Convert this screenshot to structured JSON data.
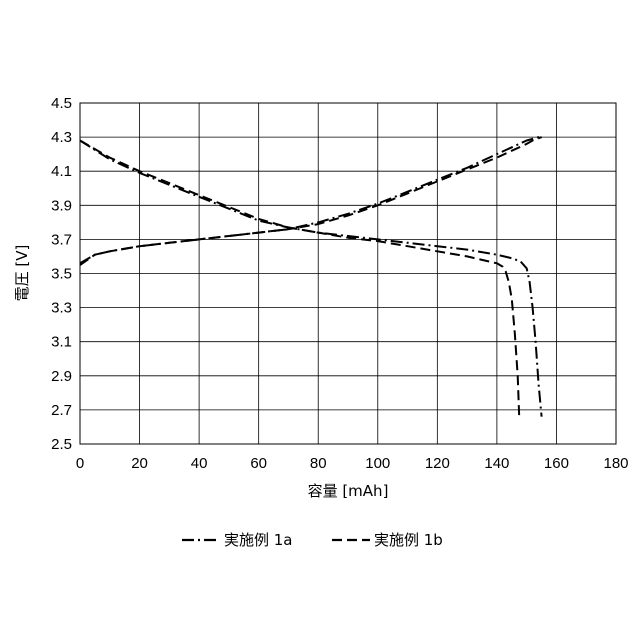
{
  "chart_data": {
    "type": "line",
    "xlabel": "容量 [mAh]",
    "ylabel": "電圧 [V]",
    "xlim": [
      0,
      180
    ],
    "ylim": [
      2.5,
      4.5
    ],
    "xticks": [
      "0",
      "20",
      "40",
      "60",
      "80",
      "100",
      "120",
      "140",
      "160",
      "180"
    ],
    "yticks": [
      "2.5",
      "2.7",
      "2.9",
      "3.1",
      "3.3",
      "3.5",
      "3.7",
      "3.9",
      "4.1",
      "4.3",
      "4.5"
    ],
    "grid": true,
    "legend_position": "bottom",
    "series": [
      {
        "name": "実施例 1a",
        "dash": "dash-dot",
        "color": "#000000",
        "curves": [
          {
            "x": [
              0,
              5,
              10,
              20,
              30,
              40,
              50,
              60,
              70,
              80,
              90,
              100,
              110,
              120,
              130,
              140,
              145,
              150,
              152,
              154,
              155
            ],
            "y": [
              3.56,
              3.61,
              3.63,
              3.66,
              3.68,
              3.7,
              3.72,
              3.74,
              3.76,
              3.8,
              3.85,
              3.91,
              3.98,
              4.05,
              4.12,
              4.2,
              4.24,
              4.28,
              4.29,
              4.3,
              4.3
            ]
          },
          {
            "x": [
              0,
              10,
              20,
              30,
              40,
              50,
              60,
              70,
              80,
              90,
              100,
              110,
              120,
              130,
              140,
              145,
              148,
              150,
              151,
              152,
              153,
              154,
              155
            ],
            "y": [
              4.28,
              4.17,
              4.09,
              4.02,
              3.95,
              3.88,
              3.81,
              3.77,
              3.74,
              3.72,
              3.7,
              3.68,
              3.66,
              3.64,
              3.61,
              3.59,
              3.57,
              3.53,
              3.45,
              3.3,
              3.1,
              2.85,
              2.66
            ]
          }
        ]
      },
      {
        "name": "実施例 1b",
        "dash": "dashed",
        "color": "#000000",
        "curves": [
          {
            "x": [
              0,
              5,
              10,
              20,
              30,
              40,
              50,
              60,
              70,
              80,
              90,
              100,
              110,
              120,
              130,
              140,
              145,
              150,
              152,
              155
            ],
            "y": [
              3.55,
              3.61,
              3.63,
              3.66,
              3.68,
              3.7,
              3.72,
              3.74,
              3.76,
              3.79,
              3.84,
              3.9,
              3.97,
              4.04,
              4.11,
              4.18,
              4.22,
              4.26,
              4.28,
              4.3
            ]
          },
          {
            "x": [
              0,
              10,
              20,
              30,
              40,
              50,
              60,
              70,
              80,
              90,
              100,
              110,
              120,
              130,
              135,
              140,
              142,
              143,
              144,
              145,
              146,
              147,
              147.5
            ],
            "y": [
              4.28,
              4.18,
              4.1,
              4.03,
              3.96,
              3.89,
              3.82,
              3.77,
              3.74,
              3.71,
              3.69,
              3.66,
              3.63,
              3.6,
              3.58,
              3.56,
              3.54,
              3.51,
              3.45,
              3.35,
              3.15,
              2.9,
              2.66
            ]
          }
        ]
      }
    ]
  }
}
